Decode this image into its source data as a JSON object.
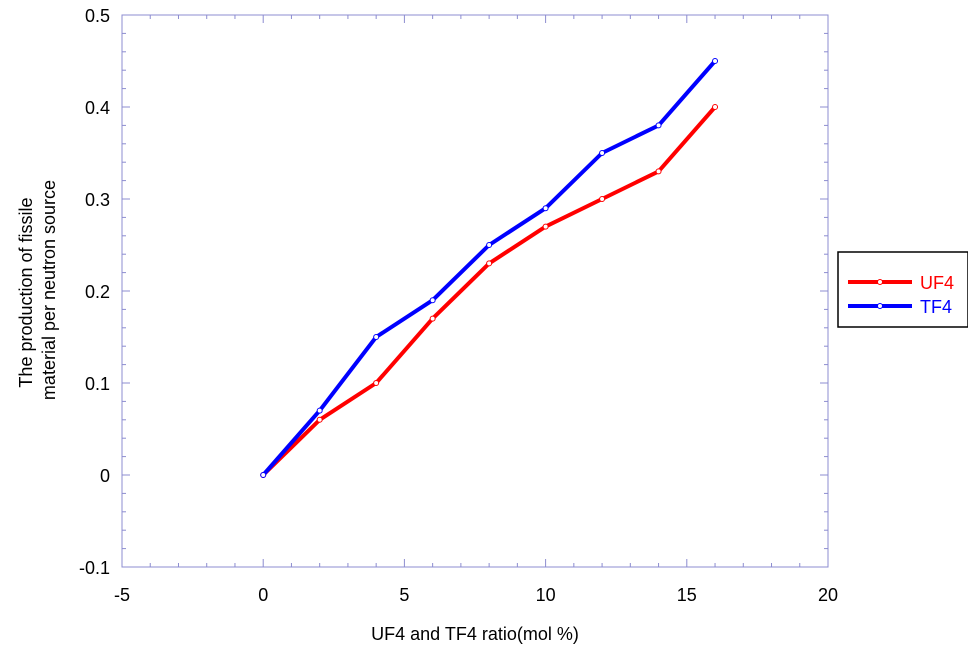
{
  "chart_data": {
    "type": "line",
    "title": "",
    "xlabel": "UF4 and TF4 ratio(mol %)",
    "ylabel_lines": [
      "The production of fissile",
      "material per neutron source"
    ],
    "xlim": [
      -5,
      20
    ],
    "ylim": [
      -0.1,
      0.5
    ],
    "x_ticks": [
      -5,
      0,
      5,
      10,
      15,
      20
    ],
    "x_tick_labels": [
      "-5",
      "0",
      "5",
      "10",
      "15",
      "20"
    ],
    "y_ticks": [
      -0.1,
      0,
      0.1,
      0.2,
      0.3,
      0.4,
      0.5
    ],
    "y_tick_labels": [
      "-0.1",
      "0",
      "0.1",
      "0.2",
      "0.3",
      "0.4",
      "0.5"
    ],
    "x_minor_per_major": 5,
    "y_minor_per_major": 5,
    "grid": false,
    "legend_position": "right, outside plot",
    "series": [
      {
        "name": "UF4",
        "color": "#ff0000",
        "x": [
          0,
          2,
          4,
          6,
          8,
          10,
          12,
          14,
          16
        ],
        "values": [
          0,
          0.06,
          0.1,
          0.17,
          0.23,
          0.27,
          0.3,
          0.33,
          0.4
        ]
      },
      {
        "name": "TF4",
        "color": "#0000ff",
        "x": [
          0,
          2,
          4,
          6,
          8,
          10,
          12,
          14,
          16
        ],
        "values": [
          0,
          0.07,
          0.15,
          0.19,
          0.25,
          0.29,
          0.35,
          0.38,
          0.45
        ]
      }
    ],
    "frame_color": "#8c8cd0"
  }
}
